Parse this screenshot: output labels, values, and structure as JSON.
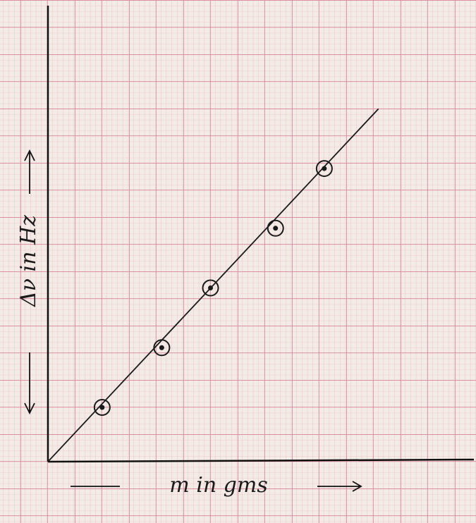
{
  "chart_data": {
    "type": "scatter",
    "x_label": "m in gms",
    "y_label": "Δν in Hz",
    "x": [
      1.0,
      2.1,
      3.0,
      4.2,
      5.1
    ],
    "values": [
      1.0,
      2.1,
      3.2,
      4.3,
      5.4
    ],
    "color": "#1a1a1a",
    "fit": {
      "x": [
        0,
        6.1
      ],
      "y": [
        0,
        6.5
      ]
    },
    "xlim": [
      0,
      7.9
    ],
    "ylim": [
      0,
      8.4
    ],
    "grid": true
  }
}
